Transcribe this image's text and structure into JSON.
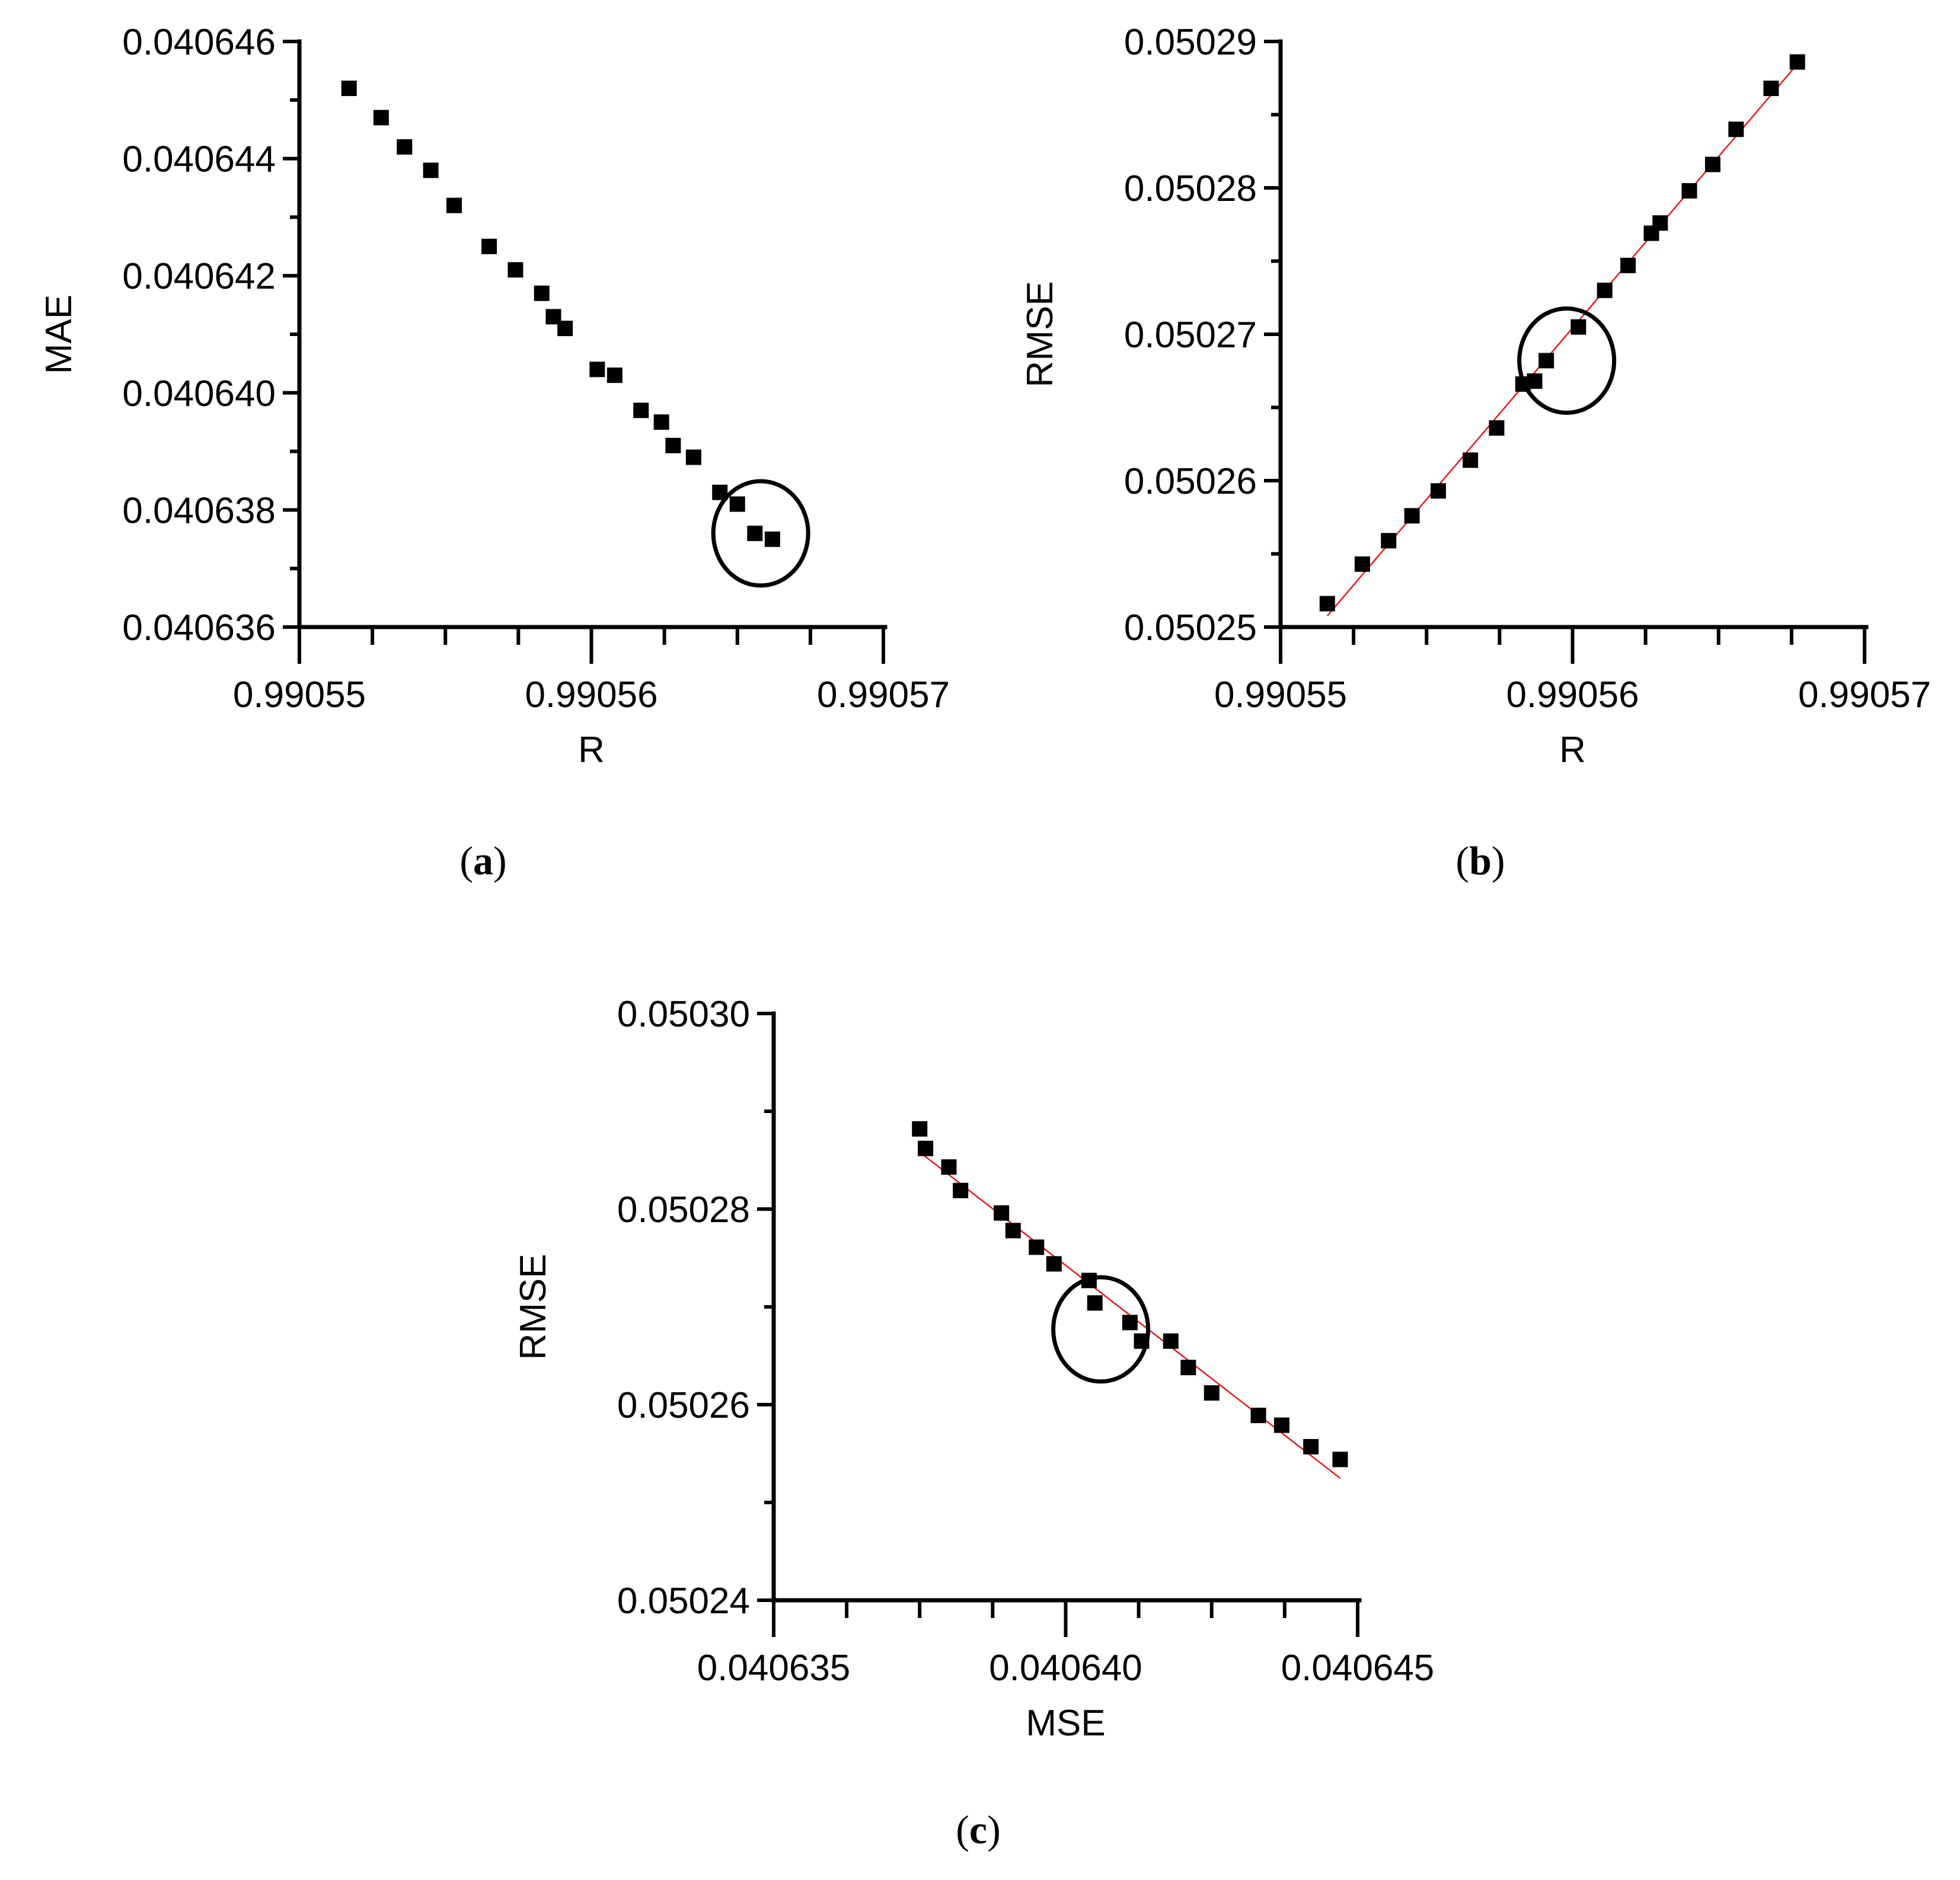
{
  "chart_data": [
    {
      "type": "scatter",
      "panel_label": "a",
      "xlabel": "R",
      "ylabel": "MAE",
      "xlim": [
        0.99055,
        0.99057
      ],
      "ylim": [
        0.040636,
        0.040646
      ],
      "xticks": [
        "0.99055",
        "0.99056",
        "0.99057"
      ],
      "yticks": [
        "0.040636",
        "0.040638",
        "0.040640",
        "0.040642",
        "0.040644",
        "0.040646"
      ],
      "trendline": false,
      "circle_highlight": {
        "x": 0.9905658,
        "y": 0.0406376
      },
      "points": [
        [
          0.9905517,
          0.0406452
        ],
        [
          0.9905528,
          0.0406447
        ],
        [
          0.9905536,
          0.0406442
        ],
        [
          0.9905545,
          0.0406438
        ],
        [
          0.9905553,
          0.0406432
        ],
        [
          0.9905565,
          0.0406425
        ],
        [
          0.9905574,
          0.0406421
        ],
        [
          0.9905583,
          0.0406417
        ],
        [
          0.9905587,
          0.0406413
        ],
        [
          0.9905591,
          0.0406411
        ],
        [
          0.9905602,
          0.0406404
        ],
        [
          0.9905608,
          0.0406403
        ],
        [
          0.9905617,
          0.0406397
        ],
        [
          0.9905624,
          0.0406395
        ],
        [
          0.9905628,
          0.0406391
        ],
        [
          0.9905635,
          0.0406389
        ],
        [
          0.9905644,
          0.0406383
        ],
        [
          0.990565,
          0.0406381
        ],
        [
          0.9905656,
          0.0406376
        ],
        [
          0.9905662,
          0.0406375
        ]
      ]
    },
    {
      "type": "scatter",
      "panel_label": "b",
      "xlabel": "R",
      "ylabel": "RMSE",
      "xlim": [
        0.99055,
        0.99057
      ],
      "ylim": [
        0.05025,
        0.05029
      ],
      "xticks": [
        "0.99055",
        "0.99056",
        "0.99057"
      ],
      "yticks": [
        "0.05025",
        "0.05026",
        "0.05027",
        "0.05028",
        "0.05029"
      ],
      "trendline": true,
      "trendline_color": "#e41a1c",
      "circle_highlight": {
        "x": 0.9905598,
        "y": 0.0502682
      },
      "points": [
        [
          0.9905516,
          0.0502516
        ],
        [
          0.9905528,
          0.0502543
        ],
        [
          0.9905537,
          0.0502559
        ],
        [
          0.9905545,
          0.0502576
        ],
        [
          0.9905554,
          0.0502593
        ],
        [
          0.9905565,
          0.0502614
        ],
        [
          0.9905574,
          0.0502636
        ],
        [
          0.9905583,
          0.0502666
        ],
        [
          0.9905587,
          0.0502668
        ],
        [
          0.9905591,
          0.0502682
        ],
        [
          0.9905602,
          0.0502705
        ],
        [
          0.9905611,
          0.050273
        ],
        [
          0.9905619,
          0.0502747
        ],
        [
          0.9905627,
          0.0502769
        ],
        [
          0.990563,
          0.0502776
        ],
        [
          0.990564,
          0.0502798
        ],
        [
          0.9905648,
          0.0502816
        ],
        [
          0.9905656,
          0.050284
        ],
        [
          0.9905668,
          0.0502868
        ],
        [
          0.9905677,
          0.0502886
        ]
      ]
    },
    {
      "type": "scatter",
      "panel_label": "c",
      "xlabel": "MSE",
      "ylabel": "RMSE",
      "xlim": [
        0.040635,
        0.040645
      ],
      "ylim": [
        0.05024,
        0.0503
      ],
      "xticks": [
        "0.040635",
        "0.040640",
        "0.040645"
      ],
      "yticks": [
        "0.05024",
        "0.05026",
        "0.05028",
        "0.05030"
      ],
      "trendline": true,
      "trendline_color": "#e41a1c",
      "circle_highlight": {
        "x": 0.0406406,
        "y": 0.0502677
      },
      "points": [
        [
          0.0406375,
          0.0502882
        ],
        [
          0.0406376,
          0.0502862
        ],
        [
          0.040638,
          0.0502843
        ],
        [
          0.0406382,
          0.0502819
        ],
        [
          0.0406389,
          0.0502796
        ],
        [
          0.0406391,
          0.0502778
        ],
        [
          0.0406395,
          0.0502761
        ],
        [
          0.0406398,
          0.0502744
        ],
        [
          0.0406404,
          0.0502727
        ],
        [
          0.0406405,
          0.0502704
        ],
        [
          0.0406411,
          0.0502684
        ],
        [
          0.0406413,
          0.0502665
        ],
        [
          0.0406418,
          0.0502665
        ],
        [
          0.0406421,
          0.0502638
        ],
        [
          0.0406425,
          0.0502612
        ],
        [
          0.0406433,
          0.0502589
        ],
        [
          0.0406437,
          0.0502579
        ],
        [
          0.0406442,
          0.0502557
        ],
        [
          0.0406447,
          0.0502544
        ]
      ]
    }
  ]
}
